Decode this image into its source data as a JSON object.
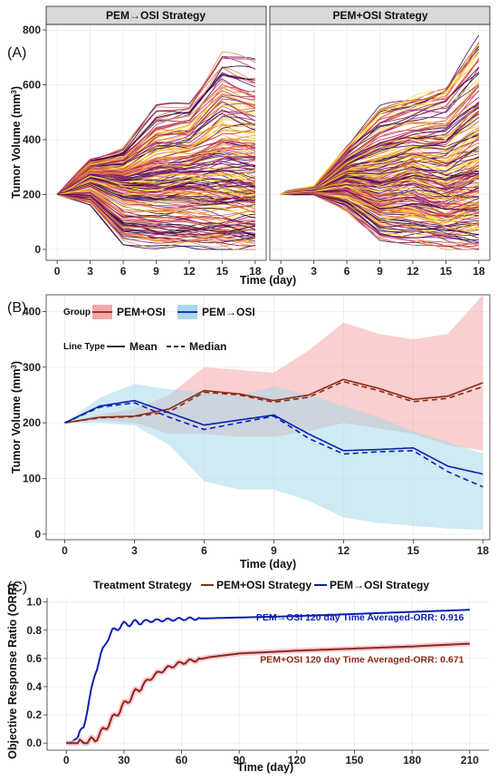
{
  "panel_labels": {
    "a": "(A)",
    "b": "(B)",
    "c": "(C)"
  },
  "chart_data": [
    {
      "id": "A",
      "type": "line",
      "facets": [
        "PEM→OSI Strategy",
        "PEM+OSI Strategy"
      ],
      "xlabel": "Time (day)",
      "ylabel_main": "Tumor Volume (mm",
      "ylabel_sup": "3",
      "ylabel_end": ")",
      "x_ticks": [
        0,
        3,
        6,
        9,
        12,
        15,
        18
      ],
      "y_ticks": [
        0,
        200,
        400,
        600,
        800
      ],
      "xlim": [
        -1,
        19
      ],
      "ylim": [
        -40,
        820
      ],
      "n_trajectories_per_facet": 200,
      "color_palette": [
        "#1a0a3d",
        "#4a0c6b",
        "#7c1d6f",
        "#a52c60",
        "#c8395c",
        "#e05c4b",
        "#f08f3b",
        "#f7c12f",
        "#f5e54a"
      ],
      "series_envelope": {
        "PEM→OSI Strategy": {
          "x": [
            0,
            3,
            6,
            9,
            12,
            15,
            18
          ],
          "y_min": [
            200,
            160,
            20,
            5,
            3,
            2,
            1
          ],
          "y_mean": [
            200,
            260,
            230,
            220,
            230,
            215,
            210
          ],
          "y_max": [
            200,
            330,
            370,
            520,
            540,
            720,
            680
          ]
        },
        "PEM+OSI Strategy": {
          "x": [
            0,
            3,
            6,
            9,
            12,
            15,
            18
          ],
          "y_min": [
            200,
            200,
            140,
            40,
            20,
            5,
            2
          ],
          "y_mean": [
            200,
            215,
            260,
            240,
            275,
            240,
            275
          ],
          "y_max": [
            210,
            230,
            380,
            520,
            560,
            600,
            770
          ]
        }
      }
    },
    {
      "id": "B",
      "type": "line",
      "xlabel": "Time (day)",
      "ylabel_main": "Tumor Volume (mm",
      "ylabel_sup": "3",
      "ylabel_end": ")",
      "x_ticks": [
        0,
        3,
        6,
        9,
        12,
        15,
        18
      ],
      "y_ticks": [
        0,
        100,
        200,
        300,
        400
      ],
      "xlim": [
        -0.8,
        18.3
      ],
      "ylim": [
        -10,
        430
      ],
      "legend": {
        "group_title": "Group",
        "group_items": [
          "PEM+OSI",
          "PEM→OSI"
        ],
        "linetype_title": "Line Type",
        "linetype_items": [
          "Mean",
          "Median"
        ],
        "position": "top-left"
      },
      "colors": {
        "PEM+OSI": "#8b2a18",
        "PEM→OSI": "#0b1fb0",
        "PEM+OSI_band": "#f4a7a7",
        "PEM→OSI_band": "#a8d8ea"
      },
      "series": [
        {
          "name": "PEM+OSI",
          "x": [
            0,
            1.5,
            3,
            4.5,
            6,
            7.5,
            9,
            10.5,
            12,
            13.5,
            15,
            16.5,
            18
          ],
          "mean": [
            200,
            210,
            212,
            225,
            258,
            252,
            240,
            250,
            278,
            262,
            242,
            248,
            272
          ],
          "median": [
            200,
            209,
            211,
            220,
            255,
            250,
            237,
            246,
            274,
            258,
            238,
            244,
            265
          ],
          "lower": [
            200,
            205,
            200,
            180,
            180,
            175,
            175,
            185,
            200,
            190,
            180,
            160,
            150
          ],
          "upper": [
            200,
            215,
            225,
            250,
            300,
            295,
            290,
            330,
            380,
            360,
            350,
            360,
            430
          ]
        },
        {
          "name": "PEM→OSI",
          "x": [
            0,
            1.5,
            3,
            4.5,
            6,
            7.5,
            9,
            10.5,
            12,
            13.5,
            15,
            16.5,
            18
          ],
          "mean": [
            200,
            230,
            240,
            218,
            196,
            205,
            214,
            180,
            150,
            152,
            155,
            122,
            108
          ],
          "median": [
            200,
            228,
            236,
            210,
            188,
            200,
            212,
            172,
            144,
            148,
            150,
            112,
            85
          ],
          "lower": [
            200,
            200,
            195,
            160,
            95,
            80,
            80,
            60,
            30,
            20,
            15,
            10,
            8
          ],
          "upper": [
            200,
            245,
            270,
            260,
            255,
            250,
            265,
            250,
            230,
            210,
            185,
            165,
            145
          ]
        }
      ]
    },
    {
      "id": "C",
      "type": "line",
      "xlabel": "Time (day)",
      "ylabel": "Objective Response Ratio (ORR)",
      "x_ticks": [
        0,
        30,
        60,
        90,
        120,
        150,
        180,
        210
      ],
      "y_ticks": [
        0.0,
        0.2,
        0.4,
        0.6,
        0.8,
        1.0
      ],
      "y_tick_labels": [
        "0.0",
        "0.2",
        "0.4",
        "0.6",
        "0.8",
        "1.0"
      ],
      "xlim": [
        -10,
        220
      ],
      "ylim": [
        -0.05,
        1.03
      ],
      "legend": {
        "title": "Treatment Strategy",
        "items": [
          "PEM+OSI Strategy",
          "PEM→OSI Strategy"
        ],
        "position": "top"
      },
      "colors": {
        "PEM+OSI Strategy": "#8b2a18",
        "PEM→OSI Strategy": "#0b1fb0",
        "band": "#f6b8c8"
      },
      "annotations": [
        {
          "text": "PEM→OSI 120 day Time Averaged-ORR: 0.916",
          "x": 207,
          "y": 0.87,
          "color": "#0b1fb0"
        },
        {
          "text": "PEM+OSI 120 day Time Averaged-ORR: 0.671",
          "x": 207,
          "y": 0.57,
          "color": "#8b2a18"
        }
      ],
      "series": [
        {
          "name": "PEM→OSI Strategy",
          "x": [
            0,
            3,
            6,
            9,
            12,
            15,
            18,
            21,
            24,
            27,
            30,
            36,
            42,
            48,
            54,
            60,
            75,
            90,
            120,
            150,
            180,
            210
          ],
          "y": [
            0,
            0.01,
            0.04,
            0.12,
            0.3,
            0.5,
            0.62,
            0.73,
            0.79,
            0.82,
            0.84,
            0.855,
            0.865,
            0.87,
            0.875,
            0.88,
            0.885,
            0.89,
            0.9,
            0.915,
            0.93,
            0.945
          ]
        },
        {
          "name": "PEM+OSI Strategy",
          "x": [
            0,
            9,
            12,
            15,
            18,
            21,
            24,
            27,
            30,
            36,
            42,
            48,
            54,
            60,
            75,
            90,
            105,
            120,
            150,
            180,
            210
          ],
          "y": [
            0,
            0,
            0.01,
            0.03,
            0.07,
            0.12,
            0.17,
            0.22,
            0.27,
            0.36,
            0.44,
            0.5,
            0.54,
            0.57,
            0.61,
            0.635,
            0.645,
            0.655,
            0.67,
            0.685,
            0.705
          ]
        }
      ]
    }
  ]
}
